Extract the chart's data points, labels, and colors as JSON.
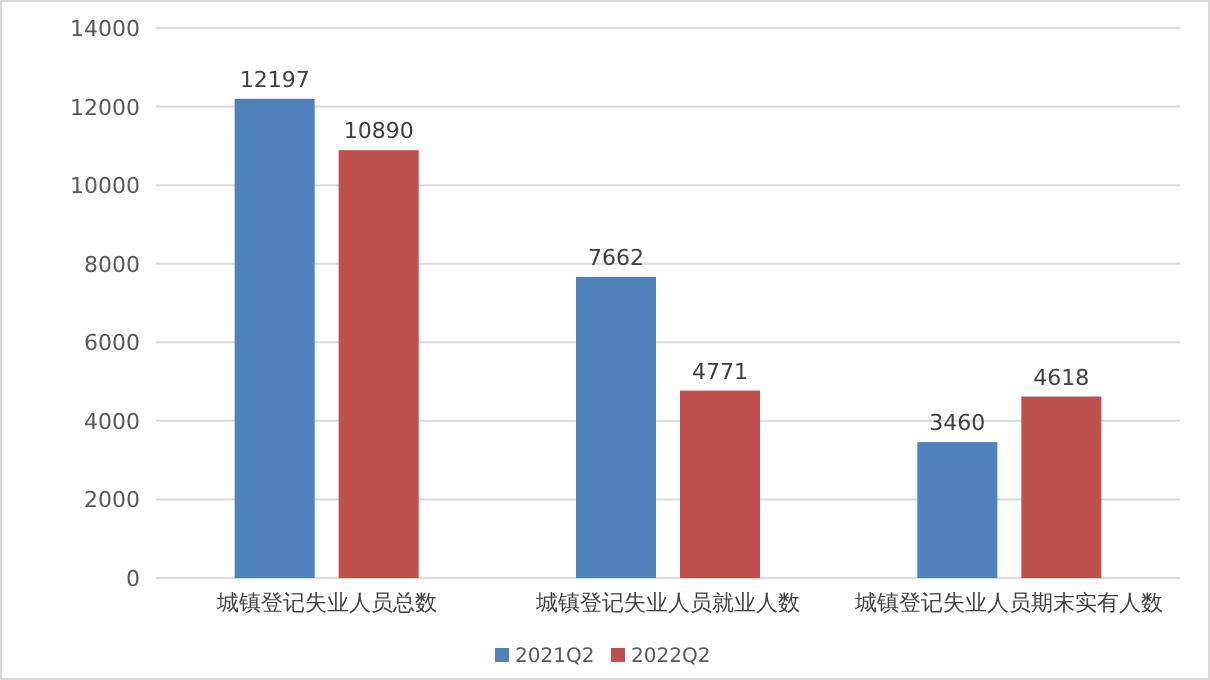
{
  "chart_data": {
    "type": "bar",
    "categories": [
      "城镇登记失业人员总数",
      "城镇登记失业人员就业人数",
      "城镇登记失业人员期末实有人数"
    ],
    "series": [
      {
        "name": "2021Q2",
        "color": "#4f81bd",
        "values": [
          12197,
          7662,
          3460
        ]
      },
      {
        "name": "2022Q2",
        "color": "#c0504d",
        "values": [
          10890,
          4771,
          4618
        ]
      }
    ],
    "ylim": [
      0,
      14000
    ],
    "yticks": [
      0,
      2000,
      4000,
      6000,
      8000,
      10000,
      12000,
      14000
    ],
    "grid": "y",
    "legend": "bottom",
    "data_labels": true
  }
}
